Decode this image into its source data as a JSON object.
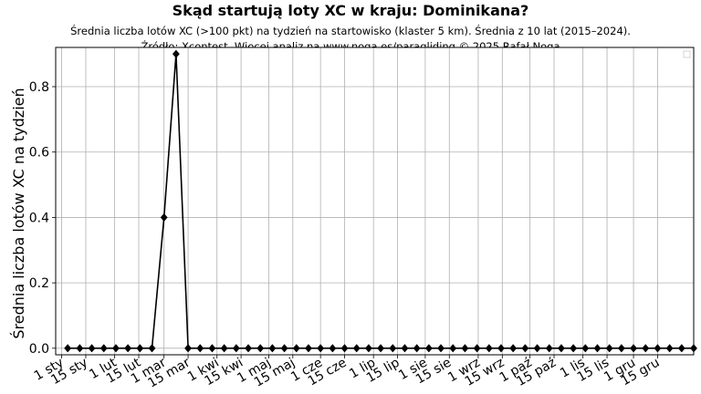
{
  "chart_data": {
    "type": "line",
    "title": "Skąd startują loty XC w kraju: Dominikana?",
    "subtitle_line1": "Średnia liczba lotów XC (>100 pkt) na tydzień na startowisko (klaster 5 km). Średnia z 10 lat (2015–2024).",
    "subtitle_line2": "Źródło: Xcontest. Więcej analiz na www.noga.es/paragliding © 2025 Rafał Noga",
    "xlabel": "",
    "ylabel": "Średnia liczba lotów XC na tydzień",
    "x": [
      1,
      2,
      3,
      4,
      5,
      6,
      7,
      8,
      9,
      10,
      11,
      12,
      13,
      14,
      15,
      16,
      17,
      18,
      19,
      20,
      21,
      22,
      23,
      24,
      25,
      26,
      27,
      28,
      29,
      30,
      31,
      32,
      33,
      34,
      35,
      36,
      37,
      38,
      39,
      40,
      41,
      42,
      43,
      44,
      45,
      46,
      47,
      48,
      49,
      50,
      51,
      52,
      53
    ],
    "values": [
      0,
      0,
      0,
      0,
      0,
      0,
      0,
      0,
      0.4,
      0.9,
      0,
      0,
      0,
      0,
      0,
      0,
      0,
      0,
      0,
      0,
      0,
      0,
      0,
      0,
      0,
      0,
      0,
      0,
      0,
      0,
      0,
      0,
      0,
      0,
      0,
      0,
      0,
      0,
      0,
      0,
      0,
      0,
      0,
      0,
      0,
      0,
      0,
      0,
      0,
      0,
      0,
      0,
      0
    ],
    "xlim": [
      0,
      53
    ],
    "ylim": [
      -0.02,
      0.92
    ],
    "yticks": [
      0.0,
      0.2,
      0.4,
      0.6,
      0.8
    ],
    "ytick_labels": [
      "0.0",
      "0.2",
      "0.4",
      "0.6",
      "0.8"
    ],
    "xtick_positions": [
      0.5,
      2.5,
      4.9,
      6.9,
      9.0,
      11.0,
      13.4,
      15.4,
      17.7,
      19.7,
      22.0,
      24.0,
      26.4,
      28.4,
      30.7,
      32.7,
      35.1,
      37.1,
      39.4,
      41.4,
      43.8,
      45.8,
      48.0,
      50.0
    ],
    "xtick_labels": [
      "1 sty",
      "15 sty",
      "1 lut",
      "15 lut",
      "1 mar",
      "15 mar",
      "1 kwi",
      "15 kwi",
      "1 maj",
      "15 maj",
      "1 cze",
      "15 cze",
      "1 lip",
      "15 lip",
      "1 sie",
      "15 sie",
      "1 wrz",
      "15 wrz",
      "1 paź",
      "15 paź",
      "1 lis",
      "15 lis",
      "1 gru",
      "15 gru"
    ],
    "grid": true,
    "legend": "top-right (empty)",
    "line_color": "#000000",
    "marker": "diamond"
  }
}
